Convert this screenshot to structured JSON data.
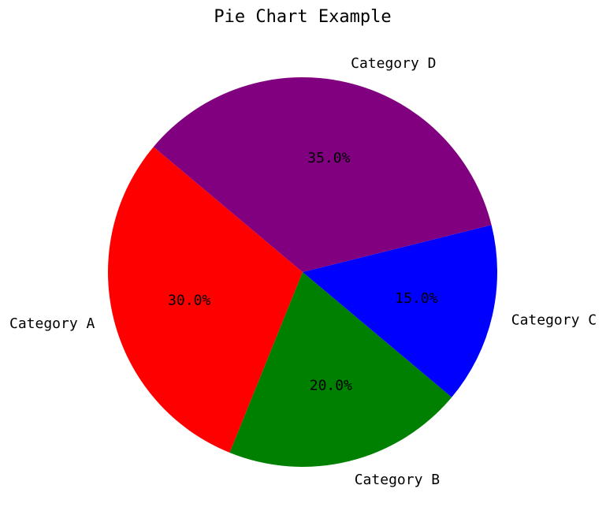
{
  "chart_data": {
    "type": "pie",
    "title": "Pie Chart Example",
    "categories": [
      "Category A",
      "Category B",
      "Category C",
      "Category D"
    ],
    "values": [
      30,
      20,
      15,
      35
    ],
    "percent_labels": [
      "30.0%",
      "20.0%",
      "15.0%",
      "35.0%"
    ],
    "colors": [
      "#ff0000",
      "#008000",
      "#0000ff",
      "#800080"
    ],
    "start_angle_degrees": 140,
    "direction": "counterclockwise",
    "legend": "none"
  }
}
